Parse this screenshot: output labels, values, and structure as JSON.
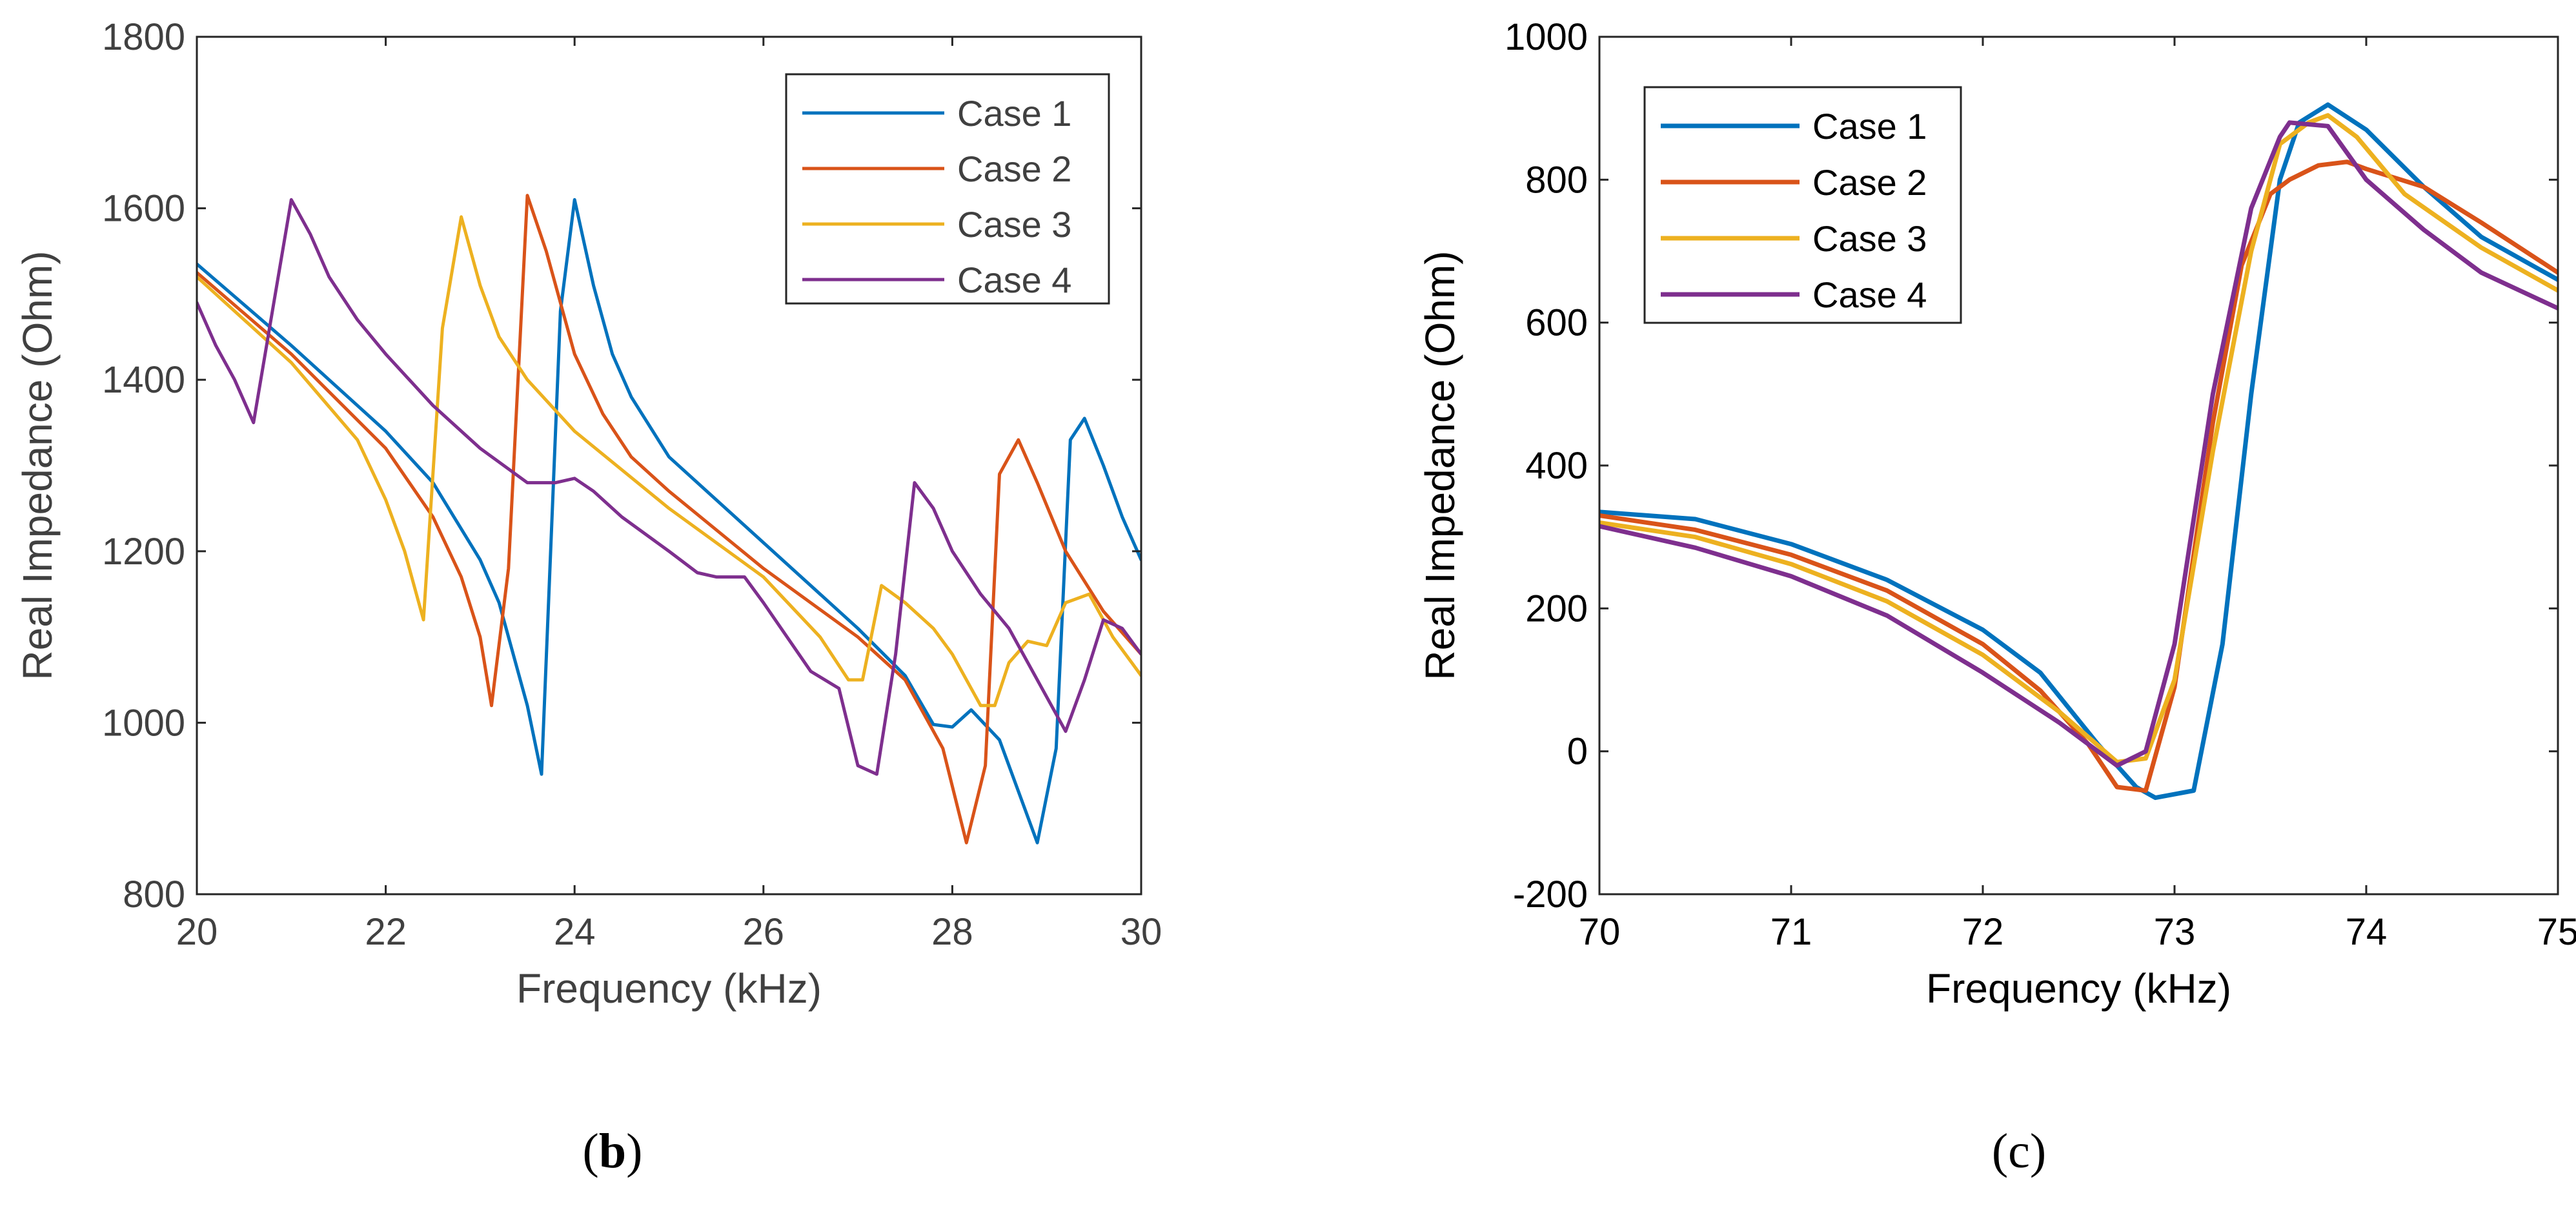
{
  "charts": [
    {
      "id": "b",
      "panel_label": "b",
      "type": "line",
      "xlabel": "Frequency (kHz)",
      "ylabel": "Real Impedance (Ohm)",
      "xlim": [
        20,
        30
      ],
      "ylim": [
        800,
        1800
      ],
      "xticks": [
        20,
        22,
        24,
        26,
        28,
        30
      ],
      "yticks": [
        800,
        1000,
        1200,
        1400,
        1600,
        1800
      ],
      "legend": "top-right",
      "grid": false
    },
    {
      "id": "c",
      "panel_label": "c",
      "type": "line",
      "xlabel": "Frequency (kHz)",
      "ylabel": "Real Impedance (Ohm)",
      "xlim": [
        70,
        75
      ],
      "ylim": [
        -200,
        1000
      ],
      "xticks": [
        70,
        71,
        72,
        73,
        74,
        75
      ],
      "yticks": [
        -200,
        0,
        200,
        400,
        600,
        800,
        1000
      ],
      "legend": "top-left",
      "grid": false
    }
  ],
  "chart_data": [
    {
      "type": "line",
      "title": "",
      "xlabel": "Frequency (kHz)",
      "ylabel": "Real Impedance (Ohm)",
      "xlim": [
        20,
        30
      ],
      "ylim": [
        800,
        1800
      ],
      "series": [
        {
          "name": "Case 1",
          "color": "#0072BD",
          "x": [
            20,
            21,
            22,
            22.5,
            23,
            23.2,
            23.5,
            23.65,
            23.85,
            24.0,
            24.2,
            24.4,
            24.6,
            25,
            26,
            27,
            27.5,
            27.8,
            28.0,
            28.2,
            28.5,
            28.9,
            29.1,
            29.25,
            29.4,
            29.6,
            29.8,
            30
          ],
          "y": [
            1535,
            1440,
            1340,
            1280,
            1190,
            1140,
            1020,
            940,
            1480,
            1610,
            1510,
            1430,
            1380,
            1310,
            1210,
            1110,
            1055,
            998,
            995,
            1015,
            980,
            860,
            970,
            1330,
            1355,
            1300,
            1240,
            1190
          ]
        },
        {
          "name": "Case 2",
          "color": "#D95319",
          "x": [
            20,
            21,
            22,
            22.5,
            22.8,
            23.0,
            23.12,
            23.3,
            23.5,
            23.7,
            24.0,
            24.3,
            24.6,
            25,
            26,
            27,
            27.5,
            27.9,
            28.15,
            28.35,
            28.5,
            28.7,
            28.9,
            29.2,
            29.6,
            30
          ],
          "y": [
            1525,
            1430,
            1320,
            1240,
            1170,
            1100,
            1020,
            1180,
            1615,
            1550,
            1430,
            1360,
            1310,
            1270,
            1180,
            1100,
            1050,
            970,
            860,
            950,
            1290,
            1330,
            1280,
            1200,
            1130,
            1080
          ]
        },
        {
          "name": "Case 3",
          "color": "#EDB120",
          "x": [
            20,
            21,
            21.7,
            22.0,
            22.2,
            22.4,
            22.6,
            22.8,
            23.0,
            23.2,
            23.5,
            24,
            25,
            26,
            26.6,
            26.9,
            27.05,
            27.25,
            27.5,
            27.8,
            28.0,
            28.3,
            28.45,
            28.6,
            28.8,
            29.0,
            29.2,
            29.45,
            29.7,
            29.9,
            30
          ],
          "y": [
            1520,
            1420,
            1330,
            1260,
            1200,
            1120,
            1460,
            1590,
            1510,
            1450,
            1400,
            1340,
            1250,
            1170,
            1100,
            1050,
            1050,
            1160,
            1140,
            1110,
            1080,
            1020,
            1020,
            1070,
            1095,
            1090,
            1140,
            1150,
            1100,
            1070,
            1055
          ]
        },
        {
          "name": "Case 4",
          "color": "#7E2F8E",
          "x": [
            20,
            20.2,
            20.4,
            20.6,
            20.8,
            21.0,
            21.2,
            21.4,
            21.7,
            22,
            22.5,
            23,
            23.5,
            23.8,
            24.0,
            24.2,
            24.5,
            25.0,
            25.3,
            25.5,
            25.8,
            26.0,
            26.5,
            26.8,
            27.0,
            27.2,
            27.4,
            27.6,
            27.8,
            28.0,
            28.3,
            28.6,
            29.0,
            29.2,
            29.4,
            29.6,
            29.8,
            30
          ],
          "y": [
            1490,
            1440,
            1400,
            1350,
            1480,
            1610,
            1570,
            1520,
            1470,
            1430,
            1370,
            1320,
            1280,
            1280,
            1285,
            1270,
            1240,
            1200,
            1175,
            1170,
            1170,
            1140,
            1060,
            1040,
            950,
            940,
            1080,
            1280,
            1250,
            1200,
            1150,
            1110,
            1030,
            990,
            1050,
            1120,
            1110,
            1080
          ]
        }
      ]
    },
    {
      "type": "line",
      "title": "",
      "xlabel": "Frequency (kHz)",
      "ylabel": "Real Impedance (Ohm)",
      "xlim": [
        70,
        75
      ],
      "ylim": [
        -200,
        1000
      ],
      "series": [
        {
          "name": "Case 1",
          "color": "#0072BD",
          "x": [
            70,
            70.5,
            71,
            71.5,
            72,
            72.3,
            72.6,
            72.8,
            72.9,
            73.0,
            73.1,
            73.25,
            73.4,
            73.55,
            73.65,
            73.8,
            74.0,
            74.3,
            74.6,
            75
          ],
          "y": [
            335,
            325,
            290,
            240,
            170,
            110,
            10,
            -50,
            -65,
            -60,
            -55,
            150,
            500,
            800,
            880,
            905,
            870,
            790,
            720,
            660
          ]
        },
        {
          "name": "Case 2",
          "color": "#D95319",
          "x": [
            70,
            70.5,
            71,
            71.5,
            72,
            72.3,
            72.55,
            72.7,
            72.85,
            73.0,
            73.2,
            73.35,
            73.5,
            73.6,
            73.75,
            73.9,
            74.0,
            74.3,
            74.6,
            75
          ],
          "y": [
            330,
            310,
            275,
            225,
            150,
            85,
            10,
            -50,
            -55,
            90,
            460,
            680,
            780,
            800,
            820,
            825,
            815,
            790,
            740,
            670
          ]
        },
        {
          "name": "Case 3",
          "color": "#EDB120",
          "x": [
            70,
            70.5,
            71,
            71.5,
            72,
            72.4,
            72.7,
            72.85,
            73.0,
            73.2,
            73.4,
            73.55,
            73.7,
            73.8,
            73.95,
            74.2,
            74.6,
            75
          ],
          "y": [
            320,
            300,
            262,
            210,
            135,
            55,
            -15,
            -10,
            100,
            420,
            700,
            850,
            880,
            890,
            860,
            780,
            705,
            645
          ]
        },
        {
          "name": "Case 4",
          "color": "#7E2F8E",
          "x": [
            70,
            70.5,
            71,
            71.5,
            72,
            72.4,
            72.7,
            72.85,
            73.0,
            73.2,
            73.4,
            73.55,
            73.6,
            73.8,
            74.0,
            74.3,
            74.6,
            75
          ],
          "y": [
            315,
            285,
            245,
            190,
            110,
            40,
            -20,
            0,
            150,
            500,
            760,
            860,
            880,
            875,
            800,
            730,
            670,
            620
          ]
        }
      ]
    }
  ]
}
